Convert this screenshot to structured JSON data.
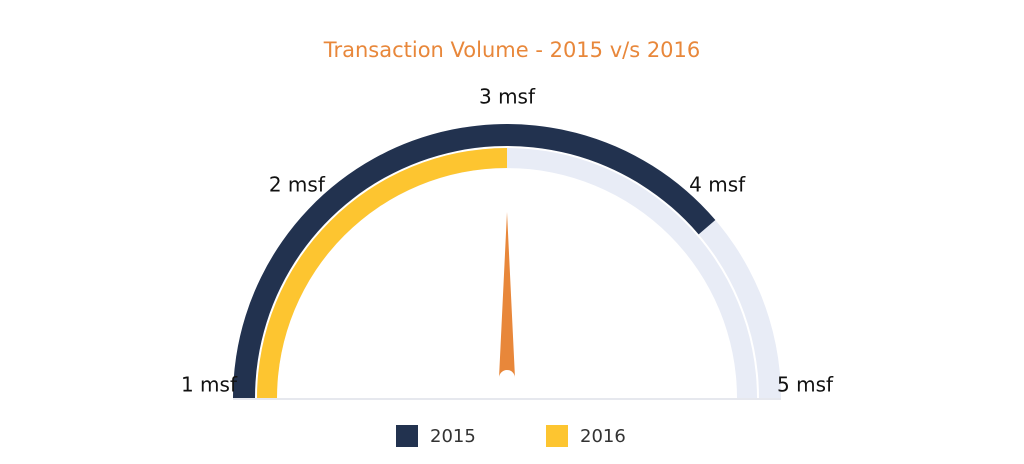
{
  "chart_data": {
    "type": "gauge",
    "title": "Transaction Volume - 2015 v/s 2016",
    "title_color": "#e8873a",
    "range": [
      1,
      5
    ],
    "ticks": [
      {
        "value": 1,
        "label": "1 msf"
      },
      {
        "value": 2,
        "label": "2 msf"
      },
      {
        "value": 3,
        "label": "3 msf"
      },
      {
        "value": 4,
        "label": "4 msf"
      },
      {
        "value": 5,
        "label": "5 msf"
      }
    ],
    "series": [
      {
        "name": "2015",
        "color": "#22324f",
        "values": [
          4.1
        ]
      },
      {
        "name": "2016",
        "color": "#fdc530",
        "values": [
          3
        ]
      }
    ],
    "track_color": "#e8ecf6",
    "needle_value": 3,
    "needle_color": "#e8873a"
  }
}
